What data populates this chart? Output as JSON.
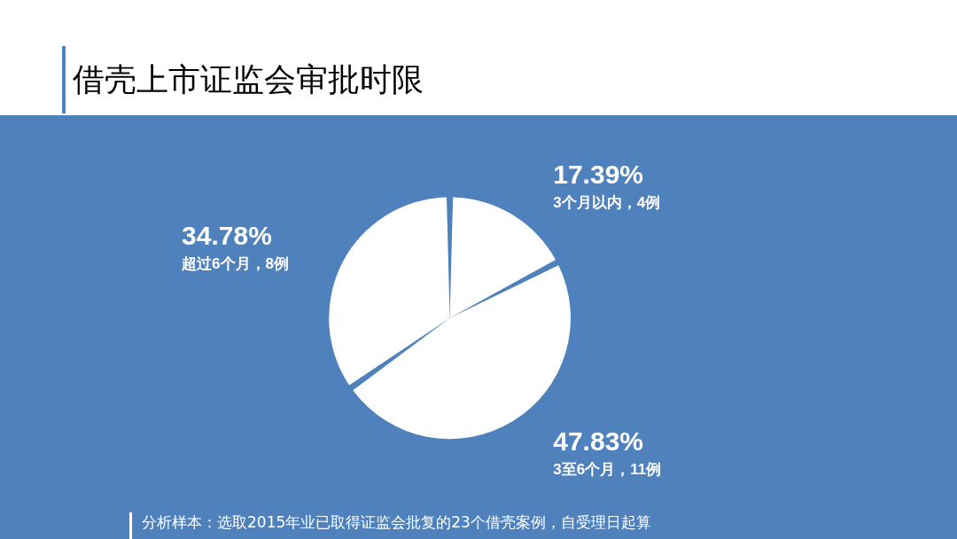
{
  "chart_data": {
    "type": "pie",
    "title": "借壳上市证监会审批时限",
    "categories": [
      "3个月以内，4例",
      "3至6个月，11例",
      "超过6个月，8例"
    ],
    "values": [
      17.39,
      47.83,
      34.78
    ],
    "colors": [
      "#ffffff",
      "#ffffff",
      "#ffffff"
    ],
    "value_labels": [
      "17.39%",
      "47.83%",
      "34.78%"
    ],
    "annotations": [
      "分析样本：选取2015年业已取得证监会批复的23个借壳案例，自受理日起算"
    ]
  }
}
